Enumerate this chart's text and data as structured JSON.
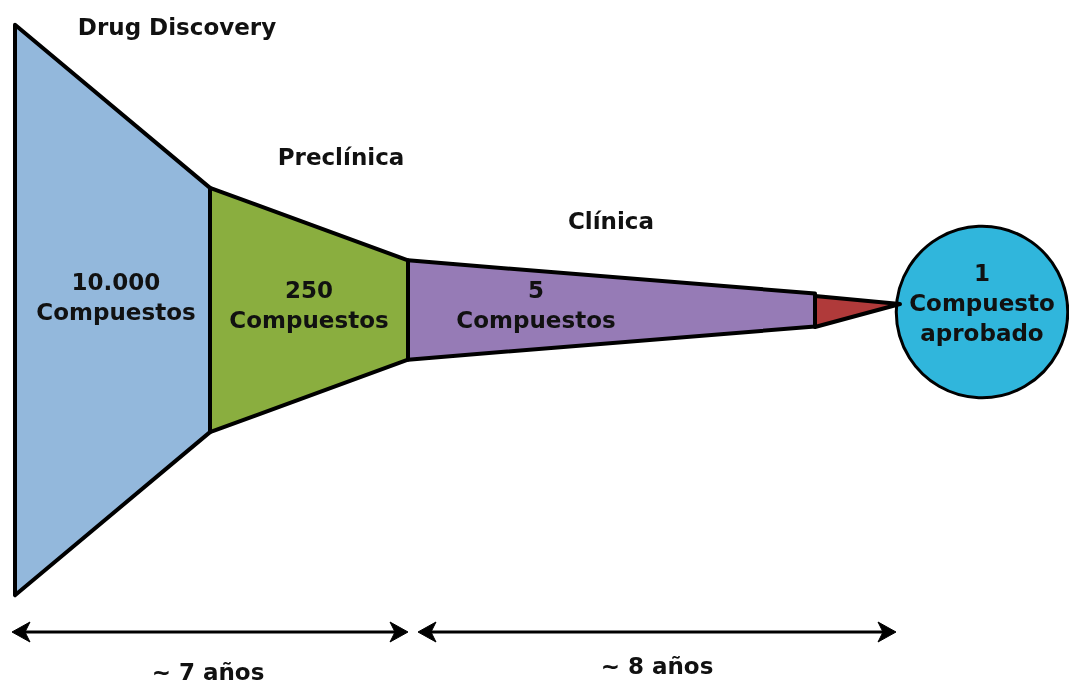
{
  "chart_data": {
    "type": "other",
    "categories": [
      null,
      null,
      null,
      null
    ],
    "values": [
      10000,
      250,
      5,
      1
    ],
    "value_labels": [
      "10.000 Compuestos",
      "250 Compuestos",
      "5 Compuestos",
      "1 Compuesto aprobado"
    ],
    "colors": [
      "#93b8dc",
      "#8aae3f",
      "#967bb6",
      "#30b6dc"
    ],
    "annotations": [
      "Drug Discovery",
      "Preclínica",
      "Clínica",
      "~ 7 años",
      "~ 8 años"
    ]
  }
}
